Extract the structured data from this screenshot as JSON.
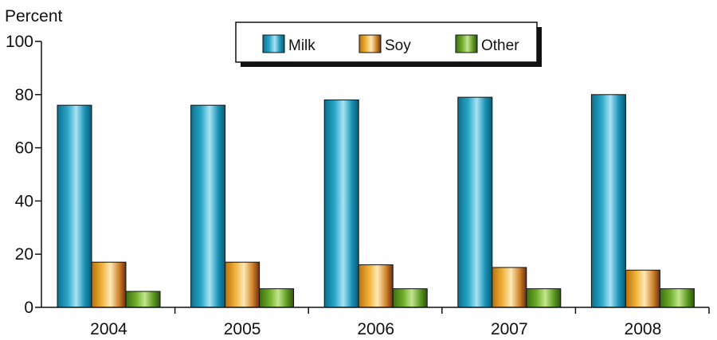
{
  "chart_data": {
    "type": "bar",
    "ylabel": "Percent",
    "xlabel": "",
    "title": "",
    "ylim": [
      0,
      100
    ],
    "yticks": [
      0,
      20,
      40,
      60,
      80,
      100
    ],
    "categories": [
      "2004",
      "2005",
      "2006",
      "2007",
      "2008"
    ],
    "series": [
      {
        "name": "Milk",
        "values": [
          76,
          76,
          78,
          79,
          80
        ]
      },
      {
        "name": "Soy",
        "values": [
          17,
          17,
          16,
          15,
          14
        ]
      },
      {
        "name": "Other",
        "values": [
          6,
          7,
          7,
          7,
          7
        ]
      }
    ],
    "grid": false,
    "legend_position": "top-center"
  },
  "colors": {
    "Milk": [
      "#0c6f8d",
      "#2aa6c8",
      "#a9e3f4",
      "#1992b6",
      "#085a73"
    ],
    "Soy": [
      "#b8700f",
      "#f0b23a",
      "#fde9b8",
      "#d0842a",
      "#6b2f12"
    ],
    "Other": [
      "#3d6e14",
      "#6fae2a",
      "#c3e68f",
      "#5f9b22",
      "#2c5410"
    ]
  }
}
